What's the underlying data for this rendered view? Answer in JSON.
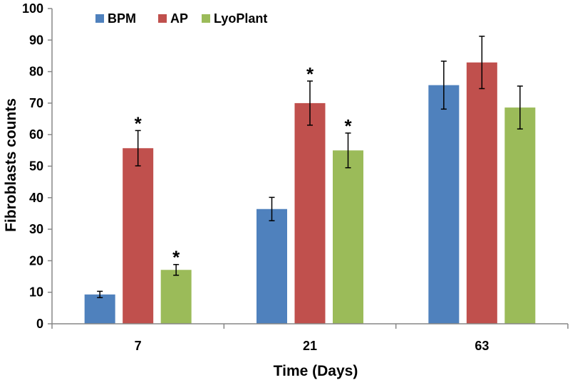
{
  "chart_data": {
    "type": "bar",
    "title": "",
    "xlabel": "Time (Days)",
    "ylabel": "Fibroblasts counts",
    "ylim": [
      0,
      100
    ],
    "yticks": [
      0,
      10,
      20,
      30,
      40,
      50,
      60,
      70,
      80,
      90,
      100
    ],
    "categories": [
      "7",
      "21",
      "63"
    ],
    "significance_marker": "*",
    "legend_position": "top-left",
    "series": [
      {
        "name": "BPM",
        "color": "#4f81bd",
        "values": [
          9.3,
          36.4,
          75.7
        ],
        "errors": [
          1.0,
          3.7,
          7.6
        ],
        "significant": [
          false,
          false,
          false
        ]
      },
      {
        "name": "AP",
        "color": "#c0504d",
        "values": [
          55.7,
          70.0,
          82.9
        ],
        "errors": [
          5.6,
          7.0,
          8.3
        ],
        "significant": [
          true,
          true,
          false
        ]
      },
      {
        "name": "LyoPlant",
        "color": "#9bbb59",
        "values": [
          17.1,
          55.0,
          68.6
        ],
        "errors": [
          1.7,
          5.5,
          6.8
        ],
        "significant": [
          true,
          true,
          false
        ]
      }
    ]
  }
}
